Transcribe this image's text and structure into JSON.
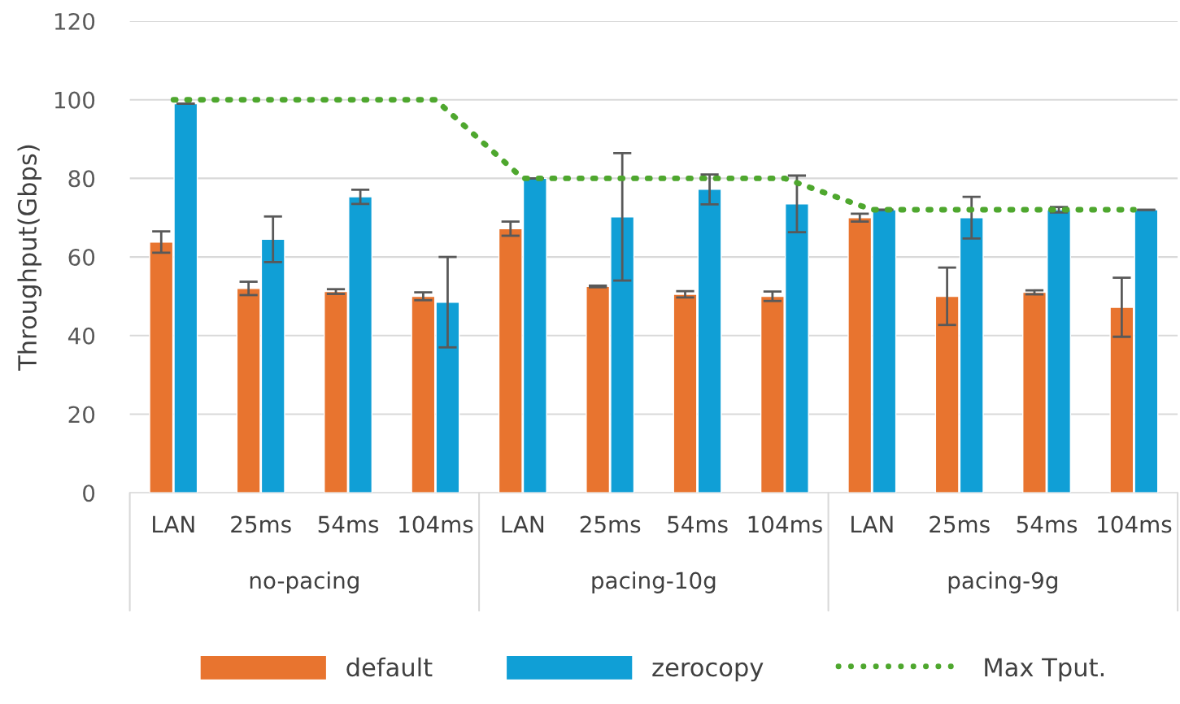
{
  "chart_data": {
    "type": "bar",
    "ylabel": "Throughput(Gbps)",
    "categories": [
      "LAN",
      "25ms",
      "54ms",
      "104ms",
      "LAN",
      "25ms",
      "54ms",
      "104ms",
      "LAN",
      "25ms",
      "54ms",
      "104ms"
    ],
    "annotations": [
      "no-pacing",
      "pacing-10g",
      "pacing-9g"
    ],
    "series": [
      {
        "name": "default",
        "color": "#e8742f",
        "values": [
          63.8,
          52,
          51.2,
          50,
          67.2,
          52.5,
          50.5,
          50,
          70,
          50,
          51,
          47.2
        ],
        "errors": [
          2.7,
          1.7,
          0.6,
          1,
          1.8,
          0.2,
          0.8,
          1.2,
          1,
          7.3,
          0.5,
          7.5
        ]
      },
      {
        "name": "zerocopy",
        "color": "#109fd6",
        "values": [
          99,
          64.5,
          75.3,
          48.5,
          80,
          70.2,
          77.2,
          73.5,
          72,
          70,
          72,
          72
        ],
        "errors": [
          0,
          5.8,
          1.8,
          11.5,
          0,
          16.2,
          3.8,
          7.2,
          0,
          5.3,
          0.7,
          0
        ]
      },
      {
        "name": "Max Tput.",
        "type": "line",
        "color": "#4ea72e",
        "line_style": "dotted",
        "values": [
          100,
          100,
          100,
          100,
          80,
          80,
          80,
          80,
          72,
          72,
          72,
          72
        ]
      }
    ],
    "ylim": [
      0,
      120
    ],
    "yticks": [
      0,
      20,
      40,
      60,
      80,
      100,
      120
    ],
    "grid": "y",
    "legend": "bottom"
  }
}
